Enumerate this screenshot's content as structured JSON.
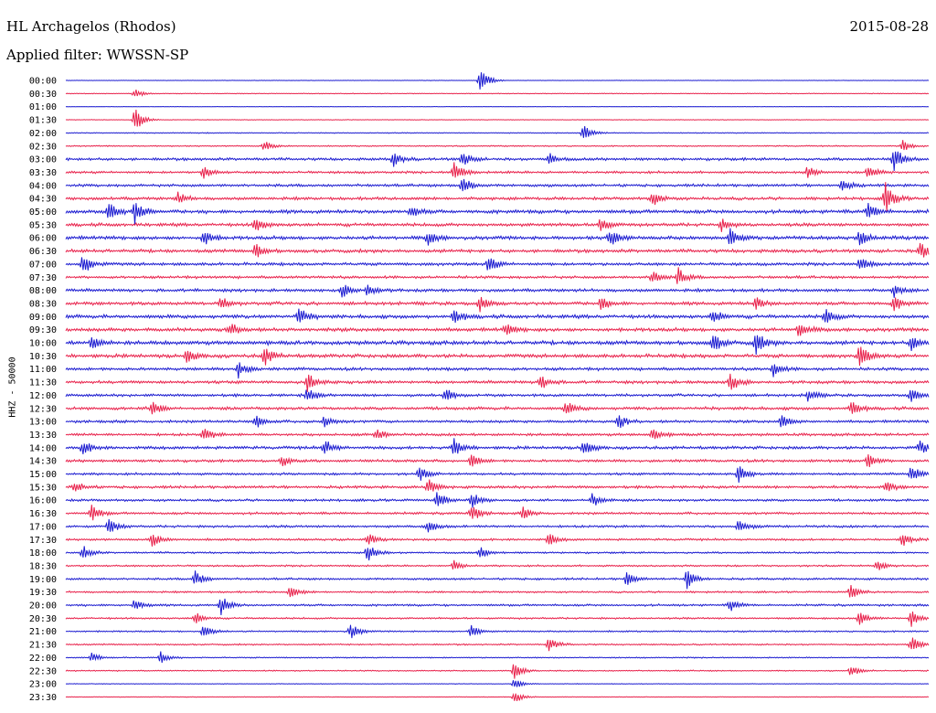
{
  "header": {
    "station": "HL Archagelos (Rhodos)",
    "date": "2015-08-28",
    "filter": "Applied filter: WWSSN-SP",
    "channel_label": "HHZ - 50000"
  },
  "chart_data": {
    "type": "line",
    "title": "HL Archagelos (Rhodos)",
    "xlabel": "",
    "ylabel": "HHZ - 50000",
    "row_labels": [
      "00:00",
      "00:30",
      "01:00",
      "01:30",
      "02:00",
      "02:30",
      "03:00",
      "03:30",
      "04:00",
      "04:30",
      "05:00",
      "05:30",
      "06:00",
      "06:30",
      "07:00",
      "07:30",
      "08:00",
      "08:30",
      "09:00",
      "09:30",
      "10:00",
      "10:30",
      "11:00",
      "11:30",
      "12:00",
      "12:30",
      "13:00",
      "13:30",
      "14:00",
      "14:30",
      "15:00",
      "15:30",
      "16:00",
      "16:30",
      "17:00",
      "17:30",
      "18:00",
      "18:30",
      "19:00",
      "19:30",
      "20:00",
      "20:30",
      "21:00",
      "21:30",
      "22:00",
      "22:30",
      "23:00",
      "23:30"
    ],
    "colors": [
      "#1a1ad0",
      "#e8204a"
    ],
    "noise_level": [
      0.08,
      0.12,
      0.06,
      0.1,
      0.15,
      0.2,
      0.45,
      0.4,
      0.45,
      0.5,
      0.6,
      0.55,
      0.6,
      0.55,
      0.5,
      0.45,
      0.5,
      0.55,
      0.6,
      0.6,
      0.65,
      0.6,
      0.5,
      0.5,
      0.45,
      0.5,
      0.45,
      0.45,
      0.5,
      0.45,
      0.4,
      0.45,
      0.4,
      0.4,
      0.4,
      0.35,
      0.3,
      0.3,
      0.35,
      0.3,
      0.35,
      0.3,
      0.25,
      0.25,
      0.2,
      0.2,
      0.1,
      0.1
    ],
    "events": [
      [
        [
          0.48,
          2.5
        ]
      ],
      [
        [
          0.08,
          0.8
        ]
      ],
      [],
      [
        [
          0.08,
          2.2
        ]
      ],
      [
        [
          0.6,
          1.5
        ]
      ],
      [
        [
          0.23,
          0.9
        ],
        [
          0.97,
          1.0
        ]
      ],
      [
        [
          0.38,
          1.2
        ],
        [
          0.46,
          1.3
        ],
        [
          0.56,
          1.0
        ],
        [
          0.96,
          2.2
        ]
      ],
      [
        [
          0.16,
          1.2
        ],
        [
          0.45,
          1.8
        ],
        [
          0.86,
          1.0
        ],
        [
          0.93,
          1.2
        ]
      ],
      [
        [
          0.46,
          1.6
        ],
        [
          0.9,
          1.0
        ]
      ],
      [
        [
          0.13,
          1.0
        ],
        [
          0.68,
          1.2
        ],
        [
          0.95,
          2.5
        ]
      ],
      [
        [
          0.05,
          1.8
        ],
        [
          0.08,
          2.0
        ],
        [
          0.4,
          1.0
        ],
        [
          0.93,
          1.5
        ]
      ],
      [
        [
          0.22,
          1.3
        ],
        [
          0.62,
          1.2
        ],
        [
          0.76,
          1.0
        ]
      ],
      [
        [
          0.16,
          1.3
        ],
        [
          0.42,
          1.2
        ],
        [
          0.63,
          1.6
        ],
        [
          0.77,
          1.3
        ],
        [
          0.92,
          1.1
        ]
      ],
      [
        [
          0.22,
          1.2
        ],
        [
          0.99,
          1.5
        ]
      ],
      [
        [
          0.02,
          1.8
        ],
        [
          0.49,
          1.4
        ],
        [
          0.92,
          1.2
        ]
      ],
      [
        [
          0.68,
          1.2
        ],
        [
          0.71,
          1.5
        ]
      ],
      [
        [
          0.32,
          1.2
        ],
        [
          0.35,
          1.0
        ],
        [
          0.96,
          1.0
        ]
      ],
      [
        [
          0.18,
          1.0
        ],
        [
          0.48,
          1.3
        ],
        [
          0.62,
          1.1
        ],
        [
          0.8,
          1.0
        ],
        [
          0.96,
          1.2
        ]
      ],
      [
        [
          0.27,
          1.4
        ],
        [
          0.45,
          1.2
        ],
        [
          0.75,
          1.2
        ],
        [
          0.88,
          1.4
        ]
      ],
      [
        [
          0.19,
          1.2
        ],
        [
          0.51,
          1.0
        ],
        [
          0.85,
          1.4
        ]
      ],
      [
        [
          0.03,
          1.2
        ],
        [
          0.75,
          1.6
        ],
        [
          0.8,
          1.8
        ],
        [
          0.98,
          1.2
        ]
      ],
      [
        [
          0.14,
          1.3
        ],
        [
          0.23,
          1.6
        ],
        [
          0.92,
          2.0
        ]
      ],
      [
        [
          0.2,
          1.4
        ],
        [
          0.82,
          1.2
        ]
      ],
      [
        [
          0.28,
          1.6
        ],
        [
          0.55,
          1.2
        ],
        [
          0.77,
          1.6
        ]
      ],
      [
        [
          0.28,
          1.3
        ],
        [
          0.44,
          1.1
        ],
        [
          0.86,
          1.0
        ],
        [
          0.98,
          1.3
        ]
      ],
      [
        [
          0.1,
          1.4
        ],
        [
          0.58,
          1.2
        ],
        [
          0.91,
          1.3
        ]
      ],
      [
        [
          0.22,
          1.1
        ],
        [
          0.3,
          1.0
        ],
        [
          0.64,
          1.3
        ],
        [
          0.83,
          1.2
        ]
      ],
      [
        [
          0.16,
          1.2
        ],
        [
          0.36,
          1.0
        ],
        [
          0.68,
          1.0
        ]
      ],
      [
        [
          0.02,
          1.2
        ],
        [
          0.3,
          1.5
        ],
        [
          0.45,
          1.6
        ],
        [
          0.6,
          1.6
        ],
        [
          0.99,
          1.2
        ]
      ],
      [
        [
          0.25,
          1.0
        ],
        [
          0.47,
          1.2
        ],
        [
          0.93,
          1.2
        ]
      ],
      [
        [
          0.41,
          1.2
        ],
        [
          0.78,
          1.4
        ],
        [
          0.98,
          1.4
        ]
      ],
      [
        [
          0.01,
          1.0
        ],
        [
          0.42,
          1.3
        ],
        [
          0.95,
          1.0
        ]
      ],
      [
        [
          0.43,
          1.6
        ],
        [
          0.47,
          1.5
        ],
        [
          0.61,
          1.2
        ]
      ],
      [
        [
          0.03,
          1.4
        ],
        [
          0.47,
          1.5
        ],
        [
          0.53,
          1.0
        ]
      ],
      [
        [
          0.05,
          1.3
        ],
        [
          0.42,
          1.0
        ],
        [
          0.78,
          1.2
        ]
      ],
      [
        [
          0.1,
          1.3
        ],
        [
          0.35,
          1.0
        ],
        [
          0.56,
          1.0
        ],
        [
          0.97,
          1.2
        ]
      ],
      [
        [
          0.02,
          1.2
        ],
        [
          0.35,
          1.6
        ],
        [
          0.48,
          1.0
        ]
      ],
      [
        [
          0.45,
          0.9
        ],
        [
          0.94,
          1.0
        ]
      ],
      [
        [
          0.15,
          1.4
        ],
        [
          0.65,
          1.2
        ],
        [
          0.72,
          1.6
        ]
      ],
      [
        [
          0.26,
          1.2
        ],
        [
          0.91,
          1.4
        ]
      ],
      [
        [
          0.08,
          1.0
        ],
        [
          0.18,
          1.6
        ],
        [
          0.77,
          1.0
        ]
      ],
      [
        [
          0.15,
          1.0
        ],
        [
          0.92,
          1.2
        ],
        [
          0.98,
          1.4
        ]
      ],
      [
        [
          0.16,
          1.4
        ],
        [
          0.33,
          1.5
        ],
        [
          0.47,
          1.0
        ]
      ],
      [
        [
          0.56,
          1.2
        ],
        [
          0.98,
          1.4
        ]
      ],
      [
        [
          0.03,
          0.8
        ],
        [
          0.11,
          1.0
        ]
      ],
      [
        [
          0.52,
          1.6
        ],
        [
          0.91,
          1.0
        ]
      ],
      [
        [
          0.52,
          0.9
        ]
      ],
      [
        [
          0.52,
          1.2
        ]
      ]
    ]
  }
}
